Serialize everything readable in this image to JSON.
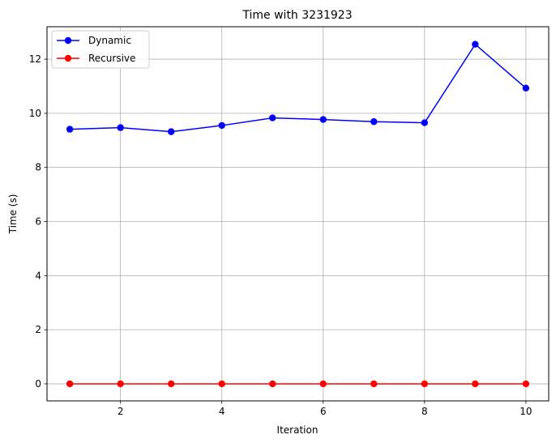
{
  "chart_data": {
    "type": "line",
    "title": "Time with 3231923",
    "xlabel": "Iteration",
    "ylabel": "Time (s)",
    "x": [
      1,
      2,
      3,
      4,
      5,
      6,
      7,
      8,
      9,
      10
    ],
    "xlim": [
      0.55,
      10.45
    ],
    "ylim": [
      -0.63,
      13.2
    ],
    "xticks": [
      2,
      4,
      6,
      8,
      10
    ],
    "yticks": [
      0,
      2,
      4,
      6,
      8,
      10,
      12
    ],
    "grid": true,
    "legend_position": "top-left",
    "series": [
      {
        "name": "Dynamic",
        "color": "#0000ff",
        "marker": "circle",
        "values": [
          9.41,
          9.47,
          9.32,
          9.55,
          9.83,
          9.77,
          9.69,
          9.65,
          12.55,
          10.93
        ]
      },
      {
        "name": "Recursive",
        "color": "#ff0000",
        "marker": "circle",
        "values": [
          0.0,
          0.0,
          0.0,
          0.0,
          0.0,
          0.0,
          0.0,
          0.0,
          0.0,
          0.0
        ]
      }
    ]
  }
}
